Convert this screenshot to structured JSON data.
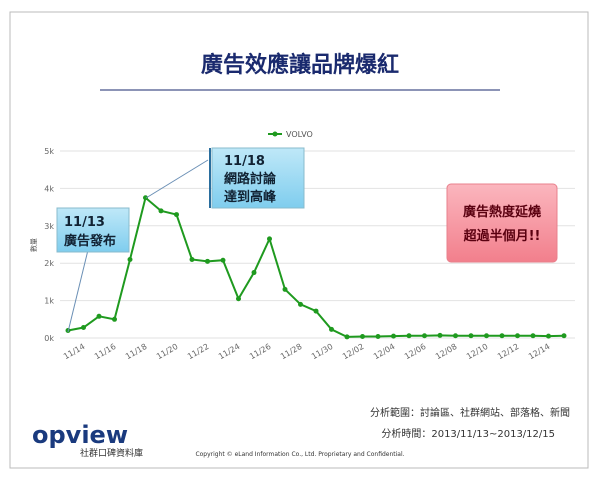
{
  "chart_data": {
    "type": "line",
    "title": "廣告效應讓品牌爆紅",
    "y_label": "數量",
    "categories": [
      null,
      "11/14",
      null,
      "11/16",
      null,
      "11/18",
      null,
      "11/20",
      null,
      "11/22",
      null,
      "11/24",
      null,
      "11/26",
      null,
      "11/28",
      null,
      "11/30",
      null,
      "12/02",
      null,
      "12/04",
      null,
      "12/06",
      null,
      "12/08",
      null,
      "12/10",
      null,
      "12/12",
      null,
      "12/14",
      null
    ],
    "series": [
      {
        "name": "VOLVO",
        "color": "#1f9a1f",
        "values": [
          200,
          280,
          580,
          500,
          2100,
          3750,
          3400,
          3300,
          2100,
          2050,
          2080,
          1050,
          1750,
          2650,
          1300,
          900,
          720,
          230,
          30,
          40,
          40,
          50,
          60,
          60,
          70,
          60,
          60,
          60,
          60,
          60,
          60,
          50,
          60
        ]
      }
    ],
    "ylim": [
      0,
      5000
    ],
    "yticks": [
      {
        "value": 0,
        "label": "0k"
      },
      {
        "value": 1000,
        "label": "1k"
      },
      {
        "value": 2000,
        "label": "2k"
      },
      {
        "value": 3000,
        "label": "3k"
      },
      {
        "value": 4000,
        "label": "4k"
      },
      {
        "value": 5000,
        "label": "5k"
      }
    ],
    "grid": true,
    "annotations": [
      [
        "11/13",
        "廣告發布"
      ],
      [
        "11/18",
        "網路討論",
        "達到高峰"
      ],
      [
        "廣告熱度延燒",
        "超過半個月!!"
      ]
    ],
    "footer": {
      "scope": "分析範圍：討論區、社群網站、部落格、新聞",
      "period": "分析時間：2013/11/13~2013/12/15",
      "copyright": "Copyright © eLand Information Co., Ltd. Proprietary and Confidential.",
      "logo": "opview",
      "logo_sub": "社群口碑資料庫"
    }
  }
}
